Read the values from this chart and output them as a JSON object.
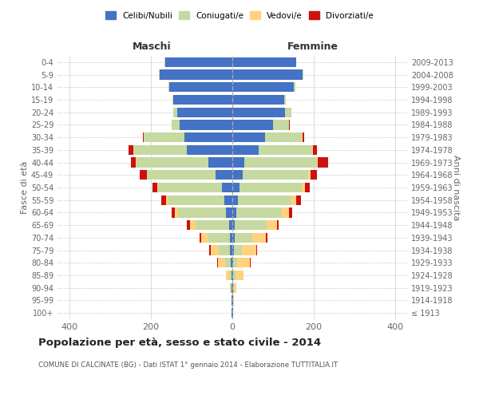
{
  "age_groups": [
    "100+",
    "95-99",
    "90-94",
    "85-89",
    "80-84",
    "75-79",
    "70-74",
    "65-69",
    "60-64",
    "55-59",
    "50-54",
    "45-49",
    "40-44",
    "35-39",
    "30-34",
    "25-29",
    "20-24",
    "15-19",
    "10-14",
    "5-9",
    "0-4"
  ],
  "birth_years": [
    "≤ 1913",
    "1914-1918",
    "1919-1923",
    "1924-1928",
    "1929-1933",
    "1934-1938",
    "1939-1943",
    "1944-1948",
    "1949-1953",
    "1954-1958",
    "1959-1963",
    "1964-1968",
    "1969-1973",
    "1974-1978",
    "1979-1983",
    "1984-1988",
    "1989-1993",
    "1994-1998",
    "1999-2003",
    "2004-2008",
    "2009-2013"
  ],
  "colors": {
    "celibi": "#4472C4",
    "coniugati": "#c5d9a0",
    "vedovi": "#FFD27F",
    "divorziati": "#cc1111"
  },
  "males": {
    "celibi": [
      1,
      1,
      1,
      2,
      3,
      5,
      6,
      8,
      15,
      20,
      25,
      42,
      58,
      112,
      118,
      130,
      135,
      145,
      155,
      178,
      165
    ],
    "coniugati": [
      0,
      0,
      2,
      5,
      15,
      28,
      52,
      82,
      118,
      138,
      158,
      168,
      178,
      132,
      100,
      20,
      10,
      3,
      3,
      2,
      1
    ],
    "vedovi": [
      0,
      1,
      3,
      8,
      18,
      20,
      18,
      15,
      8,
      5,
      2,
      1,
      1,
      0,
      0,
      0,
      0,
      0,
      0,
      0,
      0
    ],
    "divorziati": [
      0,
      0,
      0,
      1,
      1,
      3,
      5,
      6,
      9,
      11,
      11,
      16,
      13,
      11,
      2,
      0,
      0,
      0,
      0,
      0,
      0
    ]
  },
  "females": {
    "nubili": [
      1,
      1,
      2,
      2,
      2,
      3,
      5,
      6,
      10,
      13,
      18,
      25,
      30,
      65,
      80,
      100,
      130,
      128,
      152,
      172,
      157
    ],
    "coniugati": [
      0,
      0,
      2,
      5,
      10,
      20,
      45,
      78,
      112,
      132,
      152,
      162,
      178,
      132,
      90,
      40,
      15,
      3,
      3,
      2,
      1
    ],
    "vedovi": [
      0,
      2,
      5,
      20,
      32,
      35,
      32,
      26,
      18,
      13,
      8,
      5,
      2,
      1,
      2,
      0,
      0,
      0,
      0,
      0,
      0
    ],
    "divorziati": [
      0,
      0,
      0,
      1,
      1,
      2,
      4,
      4,
      7,
      10,
      13,
      16,
      26,
      11,
      4,
      2,
      0,
      0,
      0,
      0,
      0
    ]
  },
  "xlim": [
    -430,
    430
  ],
  "xticks": [
    -400,
    -200,
    0,
    200,
    400
  ],
  "xticklabels": [
    "400",
    "200",
    "0",
    "200",
    "400"
  ],
  "title": "Popolazione per età, sesso e stato civile - 2014",
  "subtitle": "COMUNE DI CALCINATE (BG) - Dati ISTAT 1° gennaio 2014 - Elaborazione TUTTITALIA.IT",
  "ylabel_left": "Fasce di età",
  "ylabel_right": "Anni di nascita",
  "header_maschi": "Maschi",
  "header_femmine": "Femmine",
  "background_color": "#ffffff",
  "grid_color": "#cccccc"
}
